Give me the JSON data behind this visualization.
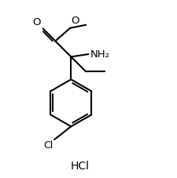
{
  "background_color": "#ffffff",
  "line_color": "#000000",
  "line_width": 1.5,
  "hcl_label": "HCl",
  "nh2_label": "NH₂",
  "o_carbonyl_label": "O",
  "o_ester_label": "O",
  "cl_label": "Cl"
}
